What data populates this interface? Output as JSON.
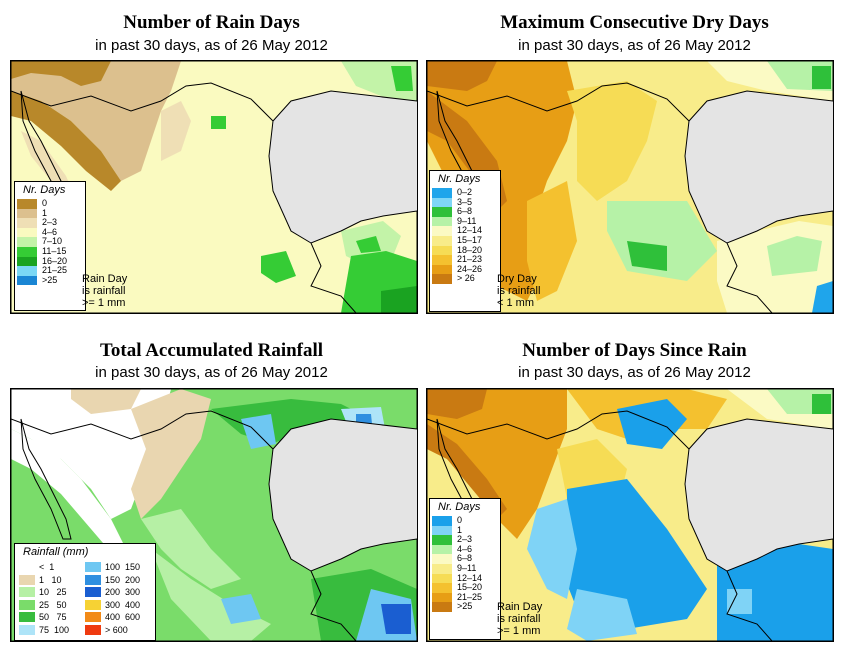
{
  "panels": [
    {
      "title": "Number of Rain Days",
      "subtitle": "in past 30 days, as of  26 May 2012",
      "legend_title": "Nr. Days",
      "legend": [
        {
          "label": "0",
          "color": "#b8882a"
        },
        {
          "label": "1",
          "color": "#dcc08e"
        },
        {
          "label": "2–3",
          "color": "#efdfb5"
        },
        {
          "label": "4–6",
          "color": "#fafac0"
        },
        {
          "label": "7–10",
          "color": "#c3f3a8"
        },
        {
          "label": "11–15",
          "color": "#35cc35"
        },
        {
          "label": "16–20",
          "color": "#1aa321"
        },
        {
          "label": "21–25",
          "color": "#7bd8f5"
        },
        {
          "label": ">25",
          "color": "#1a86d4"
        }
      ],
      "note": [
        "Rain Day",
        "is rainfall",
        ">= 1 mm"
      ]
    },
    {
      "title": "Maximum Consecutive Dry Days",
      "subtitle": "in past 30 days, as of  26 May 2012",
      "legend_title": "Nr. Days",
      "legend": [
        {
          "label": "0–2",
          "color": "#1fa5eb"
        },
        {
          "label": "3–5",
          "color": "#7fd6f6"
        },
        {
          "label": "6–8",
          "color": "#2fc03a"
        },
        {
          "label": "9–11",
          "color": "#b6f2a7"
        },
        {
          "label": "12–14",
          "color": "#fbfac4"
        },
        {
          "label": "15–17",
          "color": "#f8ec8a"
        },
        {
          "label": "18–20",
          "color": "#f6dc55"
        },
        {
          "label": "21–23",
          "color": "#f4c12f"
        },
        {
          "label": "24–26",
          "color": "#e79e15"
        },
        {
          "label": "> 26",
          "color": "#c97a12"
        }
      ],
      "note": [
        "Dry Day",
        "is rainfall",
        "< 1 mm"
      ]
    },
    {
      "title": "Total Accumulated Rainfall",
      "subtitle": "in past 30 days, as of  26 May 2012",
      "legend_title": "Rainfall (mm)",
      "legend_left": [
        {
          "label": "<  1",
          "color": "#ffffff"
        },
        {
          "label": "1   10",
          "color": "#e9d6b0"
        },
        {
          "label": "10   25",
          "color": "#b6f0a5"
        },
        {
          "label": "25   50",
          "color": "#7adc6a"
        },
        {
          "label": "50   75",
          "color": "#38bc3e"
        },
        {
          "label": "75  100",
          "color": "#aee4f8"
        }
      ],
      "legend_right": [
        {
          "label": "100  150",
          "color": "#6ec7f2"
        },
        {
          "label": "150  200",
          "color": "#2f8fe0"
        },
        {
          "label": "200  300",
          "color": "#1a5ed1"
        },
        {
          "label": "300  400",
          "color": "#f6d234"
        },
        {
          "label": "400  600",
          "color": "#f28a18"
        },
        {
          "label": "> 600",
          "color": "#ef3a10"
        }
      ]
    },
    {
      "title": "Number of Days Since Rain",
      "subtitle": "in past 30 days, as of  26 May 2012",
      "legend_title": "Nr. Days",
      "legend": [
        {
          "label": "0",
          "color": "#1aa0ea"
        },
        {
          "label": "1",
          "color": "#7fd3f6"
        },
        {
          "label": "2–3",
          "color": "#2fc03a"
        },
        {
          "label": "4–6",
          "color": "#b6f2a7"
        },
        {
          "label": "6–8",
          "color": "#fbfac4"
        },
        {
          "label": "9–11",
          "color": "#f8ec8a"
        },
        {
          "label": "12–14",
          "color": "#f6dc55"
        },
        {
          "label": "15–20",
          "color": "#f4c12f"
        },
        {
          "label": "21–25",
          "color": "#e79e15"
        },
        {
          "label": ">25",
          "color": "#c97a12"
        }
      ],
      "note": [
        "Rain Day",
        "is rainfall",
        ">= 1 mm"
      ]
    }
  ]
}
